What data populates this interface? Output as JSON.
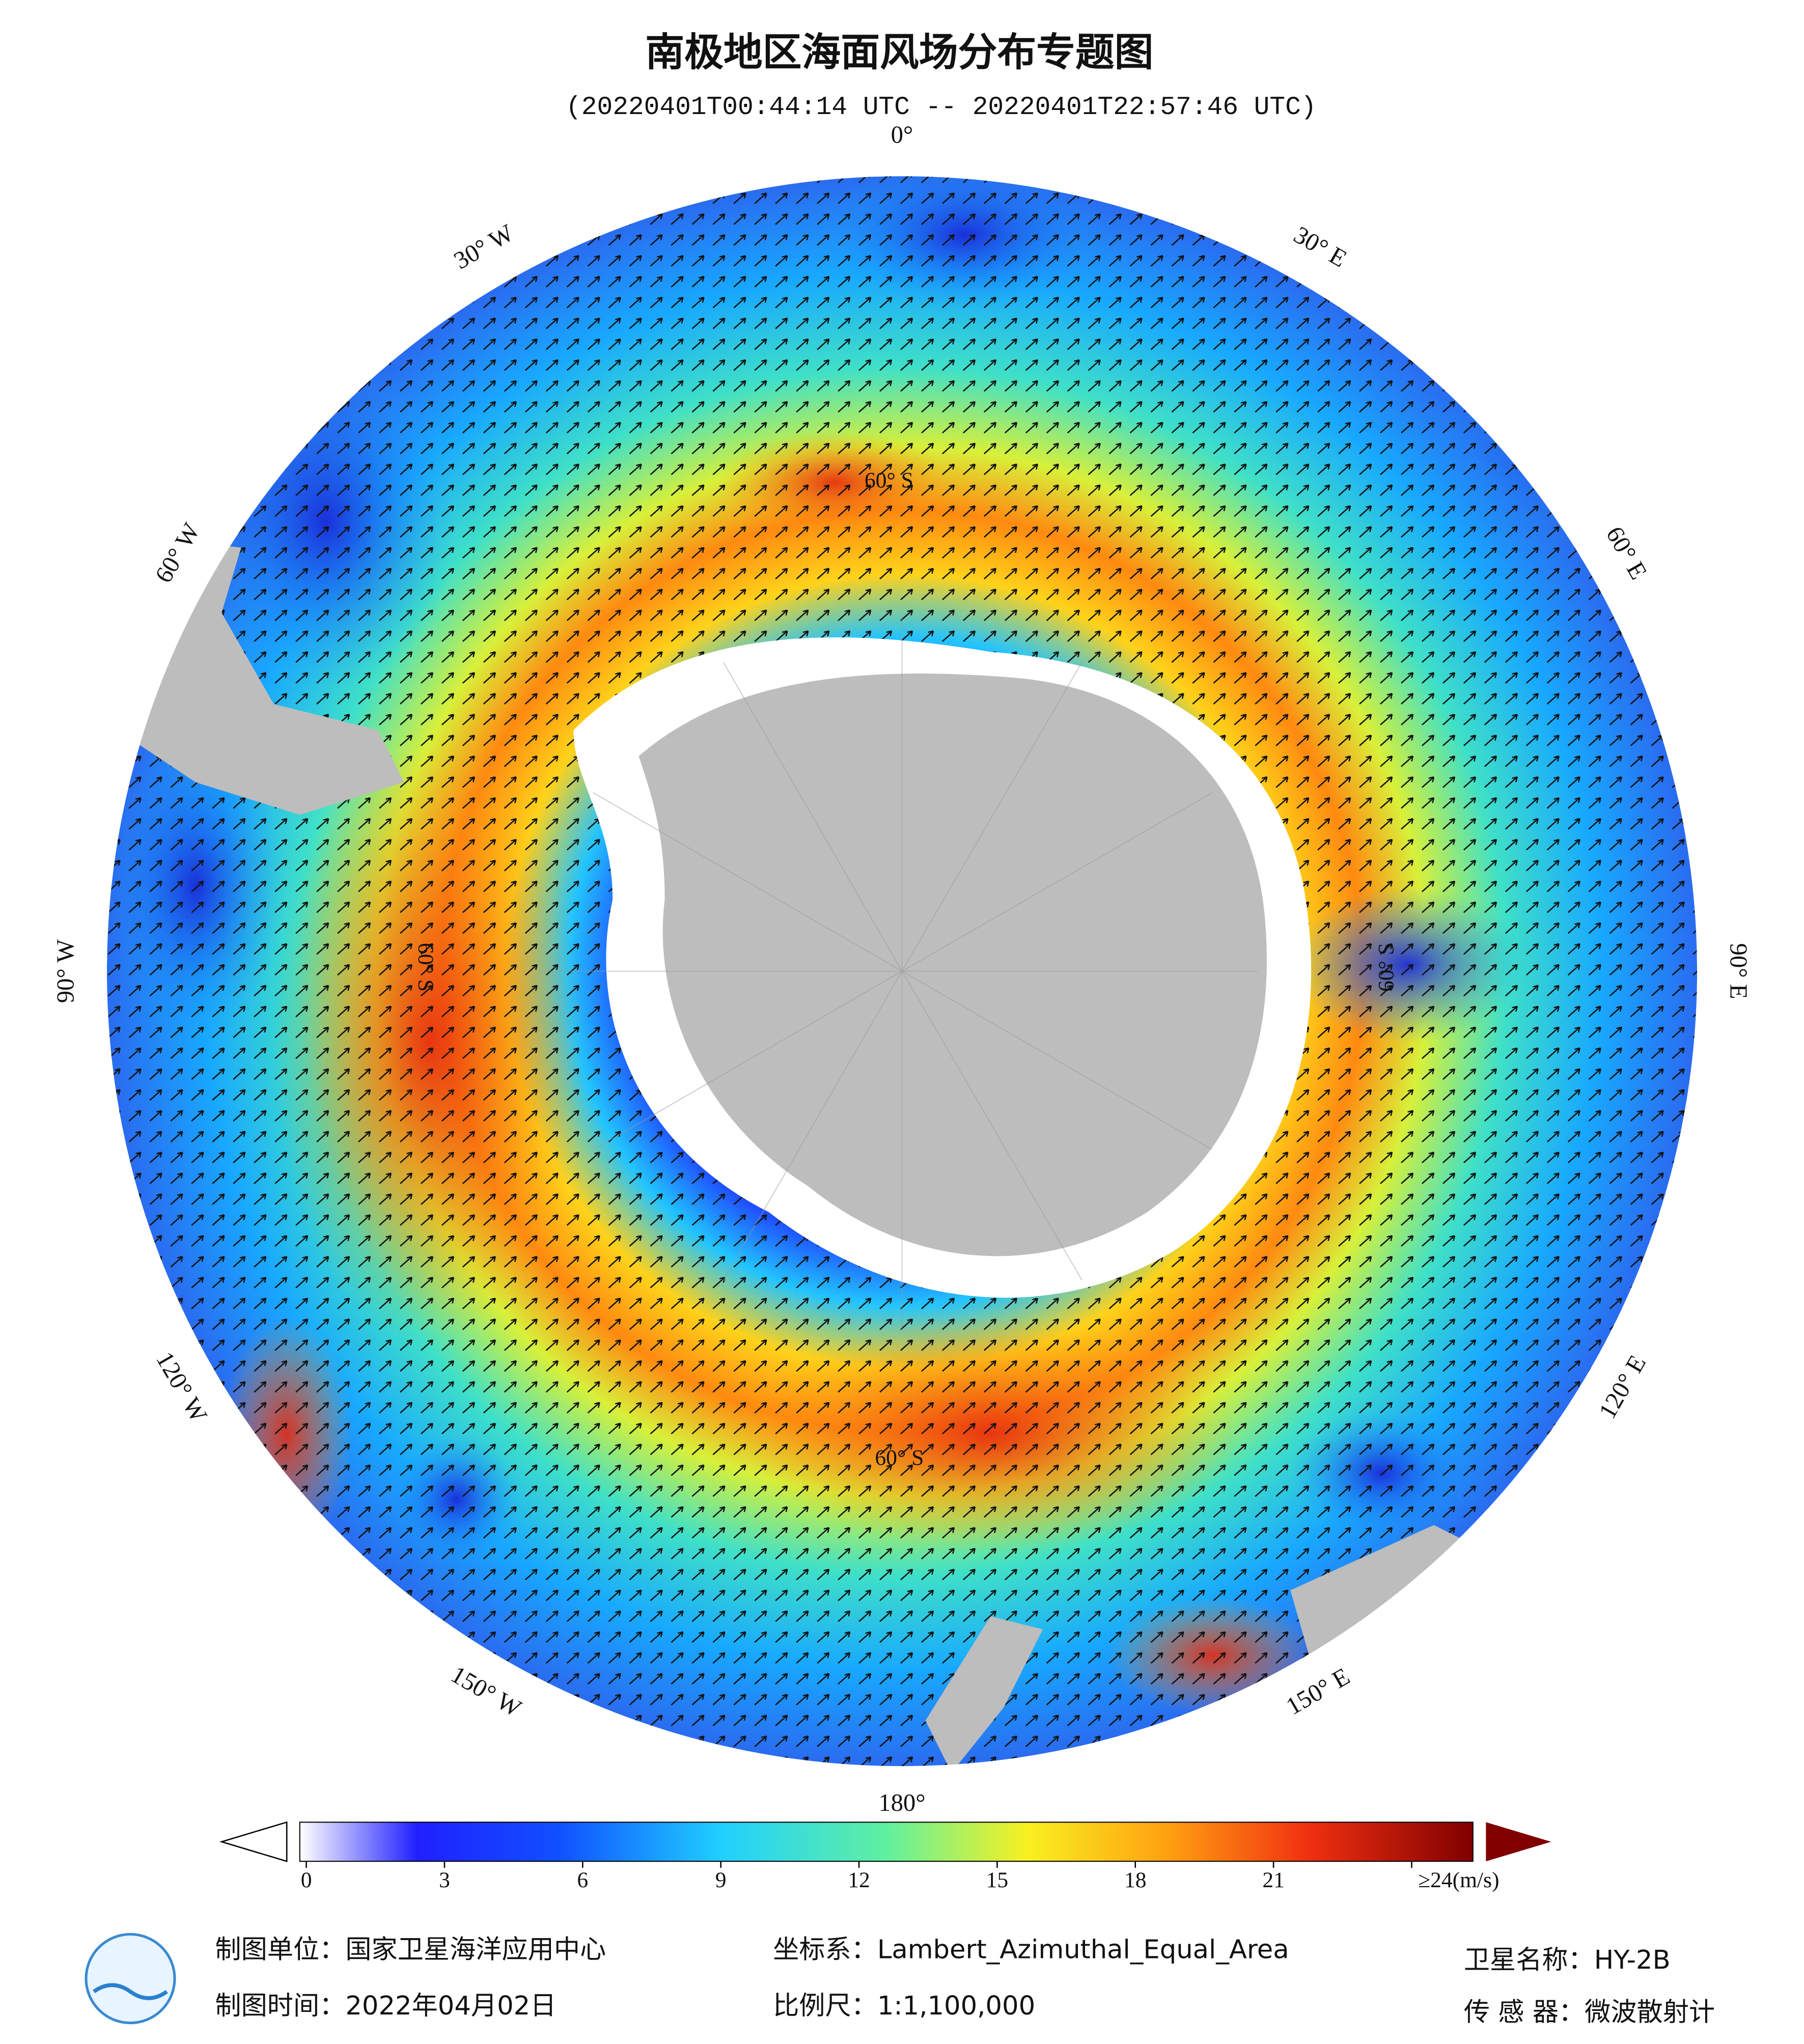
{
  "header": {
    "title": "南极地区海面风场分布专题图",
    "subtitle": "(20220401T00:44:14 UTC -- 20220401T22:57:46 UTC)"
  },
  "map": {
    "longitude_labels": [
      "0°",
      "30° E",
      "60° E",
      "90° E",
      "120° E",
      "150° E",
      "180°",
      "150° W",
      "120° W",
      "90° W",
      "60° W",
      "30° W"
    ],
    "latitude_labels": [
      "60° S",
      "60° S",
      "60° S",
      "60° S"
    ]
  },
  "colorbar": {
    "clim": [
      0,
      24
    ],
    "ticks": [
      0,
      3,
      6,
      9,
      12,
      15,
      18,
      21,
      {
        "value": 24,
        "label": "≥24(m/s)"
      }
    ]
  },
  "footer": {
    "unit": "制图单位：国家卫星海洋应用中心",
    "time": "制图时间：2022年04月02日",
    "crs": "坐标系：Lambert_Azimuthal_Equal_Area",
    "scale": "比例尺：1:1,100,000",
    "satellite": "卫星名称：HY-2B",
    "sensor": "传 感 器：微波散射计"
  }
}
